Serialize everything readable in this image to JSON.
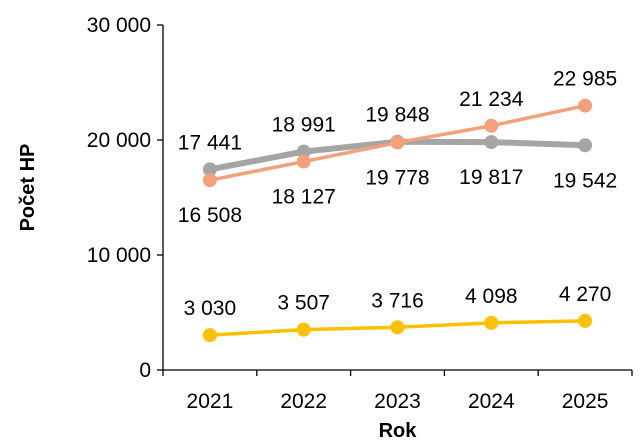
{
  "chart_data": {
    "type": "line",
    "xlabel": "Rok",
    "ylabel": "Počet HP",
    "ylim": [
      0,
      30000
    ],
    "yticks": [
      0,
      10000,
      20000,
      30000
    ],
    "ytick_labels": [
      "0",
      "10 000",
      "20 000",
      "30 000"
    ],
    "categories": [
      "2021",
      "2022",
      "2023",
      "2024",
      "2025"
    ],
    "grid": false,
    "legend": "none",
    "series": [
      {
        "color": "#A5A5A5",
        "values": [
          17441,
          18991,
          19848,
          19817,
          19542
        ],
        "labels": [
          "17 441",
          "18 991",
          "19 848",
          "19 817",
          "19 542"
        ],
        "label_position": [
          "above",
          "above",
          "above",
          "below",
          "below"
        ]
      },
      {
        "color": "#F4A07A",
        "values": [
          16508,
          18127,
          19778,
          21234,
          22985
        ],
        "labels": [
          "16 508",
          "18 127",
          "19 778",
          "21 234",
          "22 985"
        ],
        "label_position": [
          "below",
          "below",
          "below",
          "above",
          "above"
        ]
      },
      {
        "color": "#FFC000",
        "values": [
          3030,
          3507,
          3716,
          4098,
          4270
        ],
        "labels": [
          "3 030",
          "3 507",
          "3 716",
          "4 098",
          "4 270"
        ],
        "label_position": [
          "above",
          "above",
          "above",
          "above",
          "above"
        ]
      }
    ]
  }
}
